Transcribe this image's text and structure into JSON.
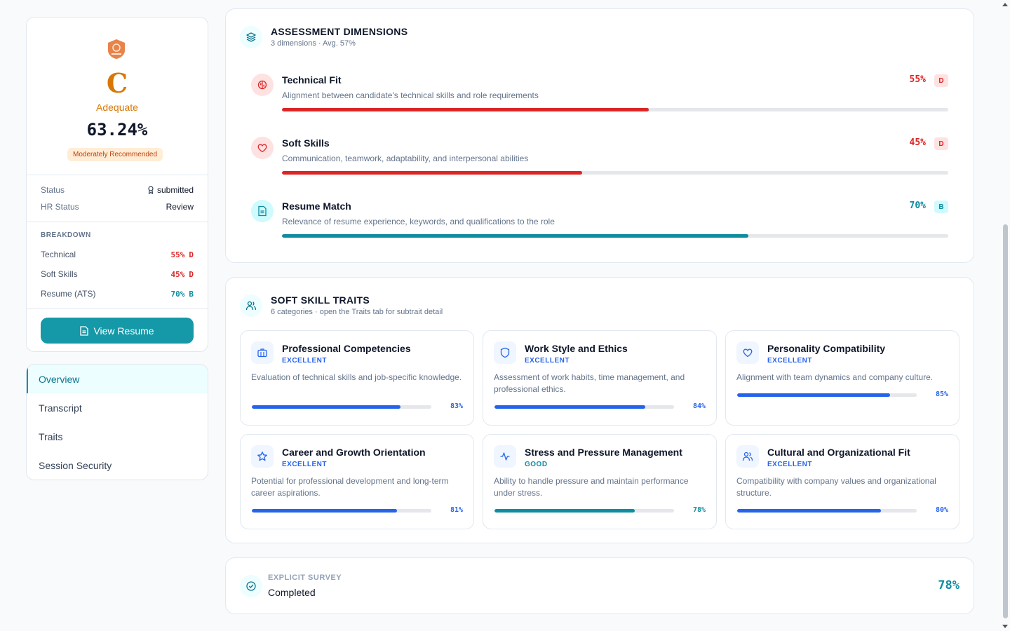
{
  "summary": {
    "grade": "C",
    "grade_label": "Adequate",
    "score": "63.24%",
    "recommendation": "Moderately Recommended",
    "status_label": "Status",
    "status_value": "submitted",
    "hr_status_label": "HR Status",
    "hr_status_value": "Review",
    "breakdown_title": "BREAKDOWN",
    "breakdown": [
      {
        "label": "Technical",
        "pct": "55%",
        "grade": "D",
        "color": "#dc2626"
      },
      {
        "label": "Soft Skills",
        "pct": "45%",
        "grade": "D",
        "color": "#dc2626"
      },
      {
        "label": "Resume (ATS)",
        "pct": "70%",
        "grade": "B",
        "color": "#0e8ca0"
      }
    ],
    "view_resume_label": "View Resume"
  },
  "nav": {
    "items": [
      {
        "label": "Overview",
        "active": true
      },
      {
        "label": "Transcript",
        "active": false
      },
      {
        "label": "Traits",
        "active": false
      },
      {
        "label": "Session Security",
        "active": false
      }
    ]
  },
  "assessment": {
    "title": "ASSESSMENT DIMENSIONS",
    "subtitle": "3 dimensions · Avg. 57%",
    "dimensions": [
      {
        "name": "Technical Fit",
        "description": "Alignment between candidate's technical skills and role requirements",
        "pct_text": "55%",
        "value": 55,
        "grade": "D",
        "color": "#dc2626",
        "bg": "#fee2e2",
        "icon": "brain-icon"
      },
      {
        "name": "Soft Skills",
        "description": "Communication, teamwork, adaptability, and interpersonal abilities",
        "pct_text": "45%",
        "value": 45,
        "grade": "D",
        "color": "#dc2626",
        "bg": "#fee2e2",
        "icon": "heart-icon"
      },
      {
        "name": "Resume Match",
        "description": "Relevance of resume experience, keywords, and qualifications to the role",
        "pct_text": "70%",
        "value": 70,
        "grade": "B",
        "color": "#0e8ca0",
        "bg": "#cffafe",
        "icon": "document-icon"
      }
    ]
  },
  "traits": {
    "title": "SOFT SKILL TRAITS",
    "subtitle": "6 categories · open the Traits tab for subtrait detail",
    "items": [
      {
        "name": "Professional Competencies",
        "level": "EXCELLENT",
        "description": "Evaluation of technical skills and job-specific knowledge.",
        "pct_text": "83%",
        "value": 83,
        "color": "#2563eb",
        "icon": "briefcase-icon"
      },
      {
        "name": "Work Style and Ethics",
        "level": "EXCELLENT",
        "description": "Assessment of work habits, time management, and professional ethics.",
        "pct_text": "84%",
        "value": 84,
        "color": "#2563eb",
        "icon": "shield-icon"
      },
      {
        "name": "Personality Compatibility",
        "level": "EXCELLENT",
        "description": "Alignment with team dynamics and company culture.",
        "pct_text": "85%",
        "value": 85,
        "color": "#2563eb",
        "icon": "heart-icon"
      },
      {
        "name": "Career and Growth Orientation",
        "level": "EXCELLENT",
        "description": "Potential for professional development and long-term career aspirations.",
        "pct_text": "81%",
        "value": 81,
        "color": "#2563eb",
        "icon": "star-icon"
      },
      {
        "name": "Stress and Pressure Management",
        "level": "GOOD",
        "description": "Ability to handle pressure and maintain performance under stress.",
        "pct_text": "78%",
        "value": 78,
        "color": "#0e8ca0",
        "icon": "activity-icon"
      },
      {
        "name": "Cultural and Organizational Fit",
        "level": "EXCELLENT",
        "description": "Compatibility with company values and organizational structure.",
        "pct_text": "80%",
        "value": 80,
        "color": "#2563eb",
        "icon": "users-icon"
      }
    ]
  },
  "survey": {
    "label": "EXPLICIT SURVEY",
    "status": "Completed",
    "pct": "78%"
  }
}
